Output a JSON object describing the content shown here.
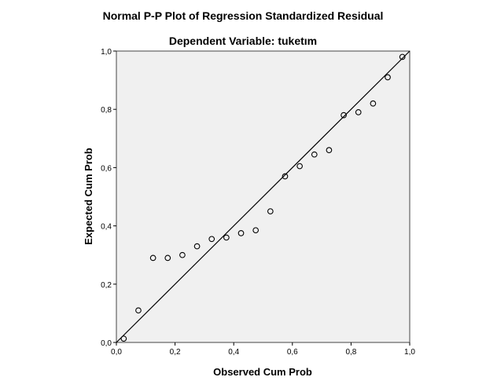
{
  "chart_data": {
    "type": "scatter",
    "title": "Normal P-P Plot of Regression Standardized Residual",
    "subtitle": "Dependent Variable: tuketım",
    "xlabel": "Observed Cum Prob",
    "ylabel": "Expected Cum Prob",
    "xlim": [
      0,
      1
    ],
    "ylim": [
      0,
      1
    ],
    "x_ticks": [
      "0,0",
      "0,2",
      "0,4",
      "0,6",
      "0,8",
      "1,0"
    ],
    "y_ticks": [
      "0,0",
      "0,2",
      "0,4",
      "0,6",
      "0,8",
      "1,0"
    ],
    "grid": false,
    "reference_line": {
      "from": [
        0,
        0
      ],
      "to": [
        1,
        1
      ]
    },
    "x": [
      0.025,
      0.075,
      0.125,
      0.175,
      0.225,
      0.275,
      0.325,
      0.375,
      0.425,
      0.475,
      0.525,
      0.575,
      0.625,
      0.675,
      0.725,
      0.775,
      0.825,
      0.875,
      0.925,
      0.975
    ],
    "y": [
      0.013,
      0.11,
      0.29,
      0.29,
      0.3,
      0.33,
      0.355,
      0.36,
      0.375,
      0.385,
      0.45,
      0.57,
      0.605,
      0.645,
      0.66,
      0.78,
      0.79,
      0.82,
      0.91,
      0.98
    ],
    "colors": {
      "plot_background": "#f0f0f0",
      "marker": "#000000"
    }
  }
}
